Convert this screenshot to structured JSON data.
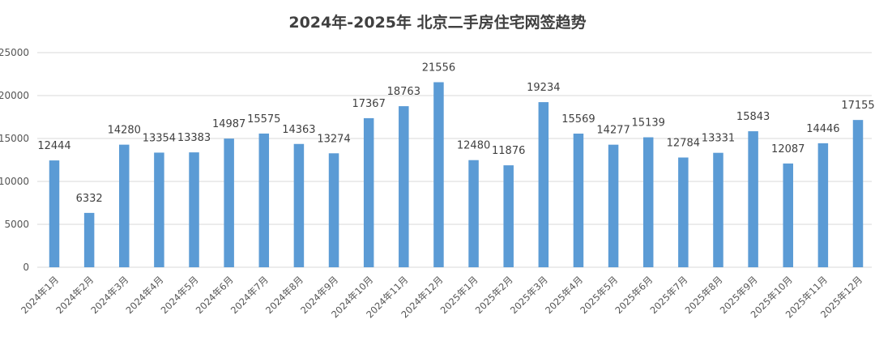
{
  "chart_data": {
    "type": "bar",
    "title": "2024年-2025年 北京二手房住宅网签趋势",
    "xlabel": "",
    "ylabel": "",
    "ylim": [
      0,
      25000
    ],
    "yticks": [
      0,
      5000,
      10000,
      15000,
      20000,
      25000
    ],
    "grid": true,
    "legend": "none",
    "bar_color": "#5b9bd5",
    "categories": [
      "2024年1月",
      "2024年2月",
      "2024年3月",
      "2024年4月",
      "2024年5月",
      "2024年6月",
      "2024年7月",
      "2024年8月",
      "2024年9月",
      "2024年10月",
      "2024年11月",
      "2024年12月",
      "2025年1月",
      "2025年2月",
      "2025年3月",
      "2025年4月",
      "2025年5月",
      "2025年6月",
      "2025年7月",
      "2025年8月",
      "2025年9月",
      "2025年10月",
      "2025年11月",
      "2025年12月"
    ],
    "values": [
      12444,
      6332,
      14280,
      13354,
      13383,
      14987,
      15575,
      14363,
      13274,
      17367,
      18763,
      21556,
      12480,
      11876,
      19234,
      15569,
      14277,
      15139,
      12784,
      13331,
      15843,
      12087,
      14446,
      17155
    ]
  }
}
